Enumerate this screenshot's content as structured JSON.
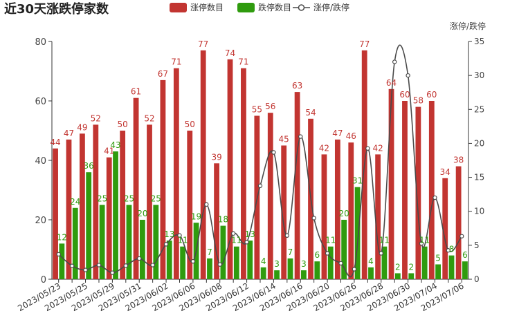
{
  "chart_data": {
    "type": "bar",
    "title": "近30天涨跌停家数",
    "right_axis_name": "涨停/跌停",
    "x": [
      "2023/05/23",
      "2023/05/24",
      "2023/05/25",
      "2023/05/26",
      "2023/05/29",
      "2023/05/30",
      "2023/05/31",
      "2023/06/01",
      "2023/06/02",
      "2023/06/05",
      "2023/06/06",
      "2023/06/07",
      "2023/06/08",
      "2023/06/09",
      "2023/06/12",
      "2023/06/13",
      "2023/06/14",
      "2023/06/15",
      "2023/06/16",
      "2023/06/19",
      "2023/06/20",
      "2023/06/21",
      "2023/06/26",
      "2023/06/27",
      "2023/06/28",
      "2023/06/29",
      "2023/06/30",
      "2023/07/03",
      "2023/07/04",
      "2023/07/05",
      "2023/07/06"
    ],
    "x_tick_labels": [
      "2023/05/23",
      "2023/05/25",
      "2023/05/29",
      "2023/05/31",
      "2023/06/02",
      "2023/06/06",
      "2023/06/08",
      "2023/06/12",
      "2023/06/14",
      "2023/06/16",
      "2023/06/20",
      "2023/06/26",
      "2023/06/28",
      "2023/06/30",
      "2023/07/04",
      "2023/07/06"
    ],
    "series": [
      {
        "name": "涨停数目",
        "type": "bar",
        "color": "#c23531",
        "values": [
          44,
          47,
          49,
          52,
          41,
          50,
          61,
          52,
          67,
          71,
          50,
          77,
          39,
          74,
          71,
          55,
          56,
          45,
          63,
          54,
          42,
          47,
          46,
          77,
          42,
          64,
          60,
          58,
          60,
          34,
          38
        ]
      },
      {
        "name": "跌停数目",
        "type": "bar",
        "color": "#2f9b0e",
        "values": [
          12,
          24,
          36,
          25,
          43,
          25,
          20,
          25,
          13,
          11,
          19,
          7,
          18,
          11,
          13,
          4,
          3,
          7,
          3,
          6,
          11,
          20,
          31,
          4,
          11,
          2,
          2,
          11,
          5,
          8,
          6
        ]
      },
      {
        "name": "涨停/跌停",
        "type": "line",
        "axis": "right",
        "color": "#4a4a4a",
        "values": [
          3.67,
          1.96,
          1.36,
          2.08,
          0.95,
          2.0,
          3.05,
          2.08,
          5.15,
          6.45,
          2.63,
          11.0,
          2.17,
          6.73,
          5.46,
          13.75,
          18.67,
          6.43,
          21.0,
          9.0,
          3.82,
          2.35,
          1.48,
          19.25,
          3.82,
          32.0,
          30.0,
          5.27,
          12.0,
          4.25,
          6.33
        ]
      }
    ],
    "y_left": {
      "min": 0,
      "max": 80,
      "ticks": [
        0,
        20,
        40,
        60,
        80
      ]
    },
    "y_right": {
      "min": 0,
      "max": 35,
      "ticks": [
        0,
        5,
        10,
        15,
        20,
        25,
        30,
        35
      ]
    },
    "legend_position": "top-center"
  }
}
